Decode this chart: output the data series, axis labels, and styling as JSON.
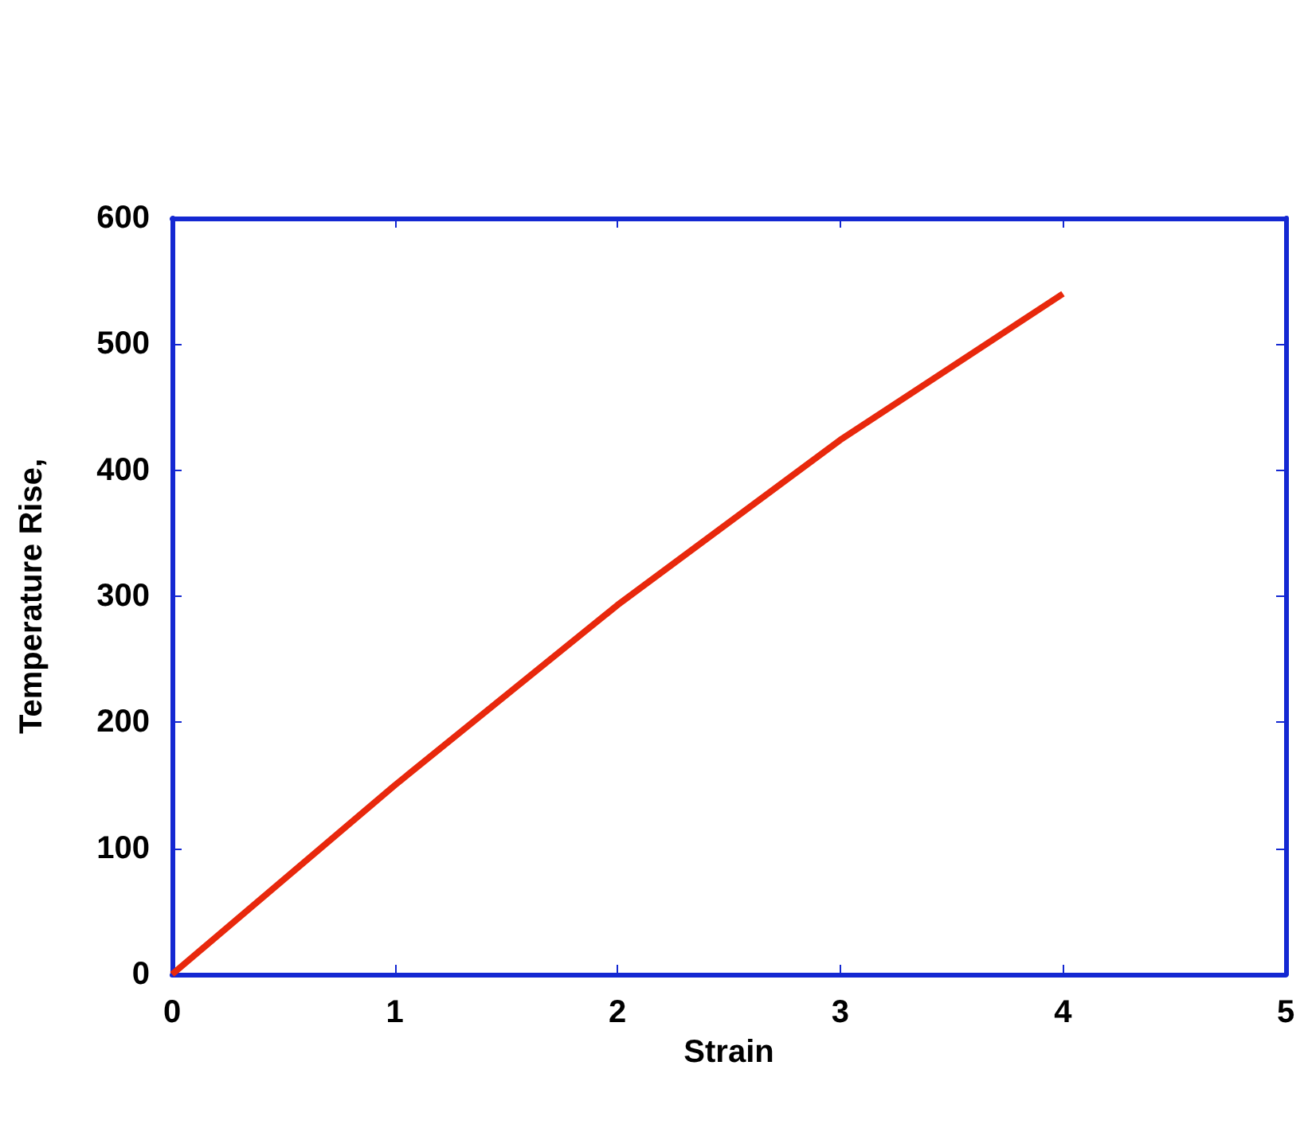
{
  "chart_data": {
    "type": "line",
    "xlabel": "Strain",
    "ylabel": "Temperature Rise,",
    "x": [
      0,
      1,
      2,
      3,
      4
    ],
    "series": [
      {
        "color": "#e8280c",
        "values": [
          0,
          150,
          293,
          424,
          540
        ]
      }
    ],
    "xlim": [
      0,
      5
    ],
    "xticks": [
      0,
      1,
      2,
      3,
      4,
      5
    ],
    "ylim": [
      0,
      600
    ],
    "yticks": [
      0,
      100,
      200,
      300,
      400,
      500,
      600
    ],
    "grid": false,
    "marker": "none",
    "line_style": "solid"
  }
}
